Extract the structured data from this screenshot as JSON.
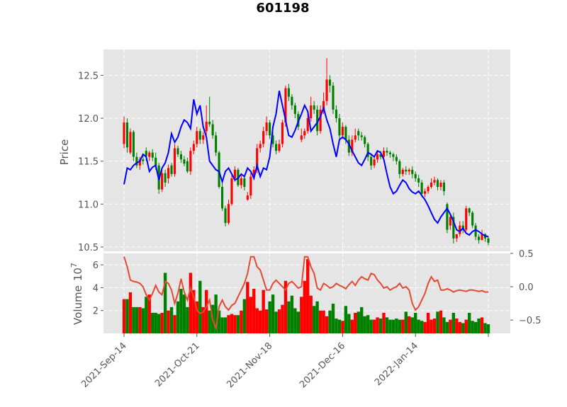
{
  "chart_data": {
    "type": "candlestick",
    "title": "601198",
    "price_panel": {
      "ylabel": "Price",
      "ylim": [
        10.45,
        12.8
      ],
      "yticks": [
        10.5,
        11.0,
        11.5,
        12.0,
        12.5
      ],
      "ytick_labels": [
        "10.5",
        "11.0",
        "11.5",
        "12.0",
        "12.5"
      ],
      "grid": true
    },
    "volume_panel": {
      "ylabel": "Volume",
      "exponent_label": "10",
      "exponent_power": "7",
      "ylim": [
        0,
        7.0
      ],
      "yticks": [
        2,
        4,
        6
      ],
      "ytick_labels": [
        "2",
        "4",
        "6"
      ],
      "secondary_ylim": [
        -0.7,
        0.5
      ],
      "secondary_yticks": [
        0.5,
        0.0,
        -0.5
      ],
      "secondary_ytick_labels": [
        "0.5",
        "0.0",
        "−0.5"
      ]
    },
    "xaxis": {
      "tick_indices": [
        0,
        23,
        46,
        69,
        92,
        115
      ],
      "tick_labels": [
        "2021-Sep-14",
        "2021-Oct-21",
        "2021-Nov-18",
        "2021-Dec-16",
        "2022-Jan-14",
        ""
      ]
    },
    "colors": {
      "up": "#ff0000",
      "down": "#008000",
      "ma_line": "#0000ff",
      "osc_line": "#e24a33",
      "panel_bg": "#e5e5e5",
      "grid": "#ffffff"
    },
    "close": [
      11.95,
      11.66,
      11.84,
      11.55,
      11.45,
      11.52,
      11.5,
      11.56,
      11.6,
      11.54,
      11.45,
      11.17,
      11.36,
      11.25,
      11.42,
      11.35,
      11.65,
      11.58,
      11.52,
      11.47,
      11.38,
      11.62,
      11.7,
      11.85,
      11.75,
      11.8,
      11.96,
      11.93,
      11.8,
      11.6,
      11.2,
      10.95,
      10.78,
      11.0,
      11.3,
      11.4,
      11.22,
      11.3,
      11.2,
      11.1,
      11.32,
      11.4,
      11.65,
      11.7,
      11.85,
      11.95,
      11.8,
      11.7,
      11.62,
      11.7,
      11.95,
      12.35,
      12.25,
      12.15,
      12.05,
      11.9,
      11.8,
      11.85,
      12.0,
      12.15,
      12.1,
      11.85,
      12.1,
      12.2,
      12.45,
      12.38,
      12.1,
      12.0,
      11.8,
      11.9,
      11.75,
      11.6,
      11.75,
      11.8,
      11.8,
      11.78,
      11.7,
      11.55,
      11.45,
      11.52,
      11.58,
      11.55,
      11.62,
      11.6,
      11.58,
      11.55,
      11.5,
      11.35,
      11.4,
      11.38,
      11.4,
      11.35,
      11.3,
      11.25,
      11.12,
      11.15,
      11.2,
      11.25,
      11.28,
      11.2,
      11.25,
      11.15,
      10.7,
      10.85,
      10.6,
      10.65,
      10.75,
      10.7,
      10.95,
      10.9,
      10.75,
      10.62,
      10.58,
      10.65,
      10.6,
      10.55
    ],
    "open": [
      11.7,
      11.95,
      11.6,
      11.84,
      11.55,
      11.45,
      11.52,
      11.62,
      11.55,
      11.6,
      11.54,
      11.45,
      11.17,
      11.36,
      11.3,
      11.45,
      11.35,
      11.65,
      11.58,
      11.52,
      11.5,
      11.38,
      11.62,
      11.7,
      11.85,
      11.75,
      11.85,
      11.96,
      11.93,
      11.8,
      11.6,
      11.2,
      10.95,
      10.78,
      11.0,
      11.3,
      11.4,
      11.22,
      11.3,
      11.05,
      11.1,
      11.32,
      11.4,
      11.65,
      11.7,
      11.85,
      11.95,
      11.8,
      11.7,
      11.62,
      11.7,
      11.95,
      12.35,
      12.25,
      12.15,
      12.05,
      11.75,
      11.8,
      11.85,
      12.0,
      12.15,
      12.1,
      11.85,
      12.1,
      12.2,
      12.45,
      12.38,
      12.1,
      12.0,
      11.8,
      11.9,
      11.75,
      11.6,
      11.75,
      11.85,
      11.8,
      11.78,
      11.7,
      11.55,
      11.45,
      11.52,
      11.58,
      11.55,
      11.62,
      11.6,
      11.58,
      11.55,
      11.5,
      11.35,
      11.4,
      11.38,
      11.4,
      11.35,
      11.3,
      11.25,
      11.12,
      11.15,
      11.2,
      11.25,
      11.28,
      11.2,
      11.25,
      11.0,
      10.75,
      10.85,
      10.6,
      10.65,
      10.75,
      10.7,
      10.95,
      10.9,
      10.75,
      10.62,
      10.58,
      10.65,
      10.6
    ],
    "high": [
      12.02,
      12.0,
      11.88,
      11.86,
      11.6,
      11.55,
      11.58,
      11.66,
      11.62,
      11.64,
      11.6,
      11.48,
      11.4,
      11.4,
      11.46,
      11.48,
      11.7,
      11.68,
      11.62,
      11.56,
      11.54,
      11.66,
      11.74,
      11.9,
      11.88,
      11.84,
      12.15,
      12.25,
      11.98,
      11.84,
      11.62,
      11.24,
      10.98,
      11.05,
      11.34,
      11.44,
      11.42,
      11.34,
      11.32,
      11.14,
      11.36,
      11.44,
      11.7,
      11.74,
      11.9,
      12.02,
      11.98,
      11.84,
      11.74,
      11.75,
      11.98,
      12.38,
      12.4,
      12.28,
      12.18,
      12.08,
      11.88,
      11.88,
      12.05,
      12.25,
      12.2,
      12.15,
      12.15,
      12.3,
      12.7,
      12.5,
      12.42,
      12.15,
      12.05,
      11.95,
      11.92,
      11.8,
      11.8,
      11.88,
      11.88,
      11.84,
      11.8,
      11.72,
      11.58,
      11.56,
      11.62,
      11.62,
      11.66,
      11.66,
      11.62,
      11.6,
      11.58,
      11.52,
      11.42,
      11.44,
      11.42,
      11.44,
      11.38,
      11.34,
      11.28,
      11.18,
      11.22,
      11.3,
      11.32,
      11.3,
      11.28,
      11.28,
      11.02,
      10.88,
      10.9,
      10.64,
      10.8,
      10.8,
      10.98,
      10.96,
      10.92,
      10.78,
      10.65,
      10.7,
      10.66,
      10.62
    ],
    "low": [
      11.65,
      11.6,
      11.58,
      11.5,
      11.42,
      11.4,
      11.46,
      11.5,
      11.5,
      11.5,
      11.4,
      11.12,
      11.14,
      11.2,
      11.24,
      11.32,
      11.32,
      11.55,
      11.48,
      11.44,
      11.36,
      11.34,
      11.58,
      11.66,
      11.7,
      11.7,
      11.8,
      11.9,
      11.76,
      11.56,
      11.18,
      10.92,
      10.74,
      10.76,
      10.98,
      11.26,
      11.2,
      11.18,
      11.16,
      11.04,
      11.06,
      11.28,
      11.36,
      11.6,
      11.66,
      11.8,
      11.76,
      11.66,
      11.58,
      11.6,
      11.66,
      11.9,
      12.2,
      12.1,
      12.0,
      11.86,
      11.72,
      11.76,
      11.82,
      11.96,
      12.05,
      11.8,
      11.82,
      12.05,
      12.15,
      12.3,
      12.05,
      11.95,
      11.76,
      11.76,
      11.7,
      11.56,
      11.56,
      11.72,
      11.74,
      11.74,
      11.66,
      11.5,
      11.4,
      11.42,
      11.48,
      11.52,
      11.52,
      11.56,
      11.54,
      11.5,
      11.46,
      11.3,
      11.32,
      11.34,
      11.34,
      11.3,
      11.26,
      11.2,
      11.08,
      11.08,
      11.12,
      11.18,
      11.22,
      11.16,
      11.16,
      11.1,
      10.66,
      10.7,
      10.54,
      10.56,
      10.62,
      10.66,
      10.68,
      10.86,
      10.72,
      10.58,
      10.54,
      10.58,
      10.56,
      10.52
    ],
    "volume": [
      3.0,
      3.0,
      3.6,
      2.3,
      2.3,
      2.3,
      2.2,
      3.2,
      3.4,
      1.8,
      1.8,
      1.7,
      1.8,
      5.3,
      2.0,
      2.3,
      1.6,
      2.8,
      3.9,
      3.4,
      2.3,
      5.3,
      3.8,
      2.8,
      4.6,
      2.3,
      3.8,
      2.0,
      2.5,
      3.4,
      2.0,
      1.4,
      1.4,
      1.6,
      1.7,
      1.6,
      1.6,
      2.0,
      3.0,
      4.5,
      3.2,
      3.9,
      2.2,
      2.0,
      3.8,
      2.1,
      2.8,
      3.4,
      1.9,
      2.1,
      2.5,
      4.6,
      2.8,
      3.3,
      2.2,
      1.9,
      3.2,
      4.6,
      6.5,
      3.3,
      2.4,
      2.8,
      2.0,
      2.0,
      1.5,
      2.0,
      2.6,
      1.3,
      1.2,
      1.1,
      2.4,
      1.7,
      1.2,
      1.8,
      1.9,
      2.3,
      1.5,
      1.6,
      1.2,
      1.2,
      1.4,
      1.3,
      1.8,
      1.4,
      1.2,
      1.2,
      1.3,
      1.2,
      1.2,
      1.9,
      1.5,
      1.4,
      1.8,
      1.2,
      1.1,
      1.0,
      1.8,
      1.2,
      1.3,
      1.9,
      2.0,
      1.4,
      1.0,
      1.2,
      1.8,
      1.3,
      1.0,
      0.9,
      1.2,
      1.8,
      1.1,
      1.0,
      1.3,
      1.4,
      0.9,
      0.8
    ],
    "ma": [
      11.23,
      11.42,
      11.4,
      11.45,
      11.48,
      11.5,
      11.58,
      11.55,
      11.38,
      11.43,
      11.45,
      11.28,
      11.42,
      11.48,
      11.6,
      11.82,
      11.72,
      11.78,
      11.9,
      11.98,
      11.95,
      11.88,
      12.22,
      12.05,
      12.15,
      11.9,
      11.78,
      11.5,
      11.45,
      11.4,
      11.38,
      11.26,
      11.38,
      11.42,
      11.35,
      11.28,
      11.3,
      11.35,
      11.32,
      11.42,
      11.38,
      11.3,
      11.45,
      11.32,
      11.42,
      11.4,
      11.55,
      11.9,
      12.05,
      12.32,
      12.15,
      11.98,
      11.8,
      11.78,
      11.86,
      11.96,
      12.05,
      12.15,
      12.08,
      11.85,
      11.9,
      11.95,
      12.02,
      12.12,
      11.98,
      11.88,
      11.7,
      11.55,
      11.75,
      11.78,
      11.75,
      11.7,
      11.62,
      11.55,
      11.48,
      11.45,
      11.52,
      11.6,
      11.58,
      11.55,
      11.62,
      11.6,
      11.52,
      11.35,
      11.2,
      11.12,
      11.15,
      11.22,
      11.28,
      11.25,
      11.18,
      11.14,
      11.12,
      11.15,
      11.1,
      11.05,
      10.98,
      10.9,
      10.82,
      10.78,
      10.85,
      10.9,
      10.95,
      10.88,
      10.8,
      10.7,
      10.68,
      10.72,
      10.66,
      10.64,
      10.68,
      10.7,
      10.68,
      10.65,
      10.63,
      10.62
    ],
    "osc": [
      0.45,
      0.3,
      0.1,
      0.08,
      0.07,
      0.05,
      0.0,
      -0.12,
      -0.2,
      -0.1,
      0.02,
      -0.08,
      -0.12,
      0.08,
      0.05,
      -0.05,
      -0.25,
      -0.1,
      0.12,
      -0.08,
      -0.2,
      -0.02,
      -0.15,
      -0.35,
      -0.4,
      -0.38,
      -0.3,
      -0.2,
      -0.5,
      -0.62,
      -0.3,
      -0.2,
      -0.3,
      -0.35,
      -0.28,
      -0.25,
      -0.15,
      -0.05,
      0.05,
      0.2,
      0.45,
      0.45,
      0.3,
      0.25,
      0.1,
      -0.05,
      -0.05,
      0.05,
      0.1,
      0.05,
      0.0,
      -0.05,
      0.05,
      0.08,
      0.03,
      -0.02,
      0.0,
      0.45,
      0.45,
      0.3,
      0.2,
      -0.02,
      -0.05,
      0.05,
      0.02,
      -0.02,
      0.0,
      0.05,
      0.02,
      0.0,
      -0.03,
      0.03,
      0.08,
      0.02,
      0.1,
      0.15,
      0.12,
      0.1,
      0.2,
      0.18,
      0.1,
      0.05,
      -0.02,
      0.0,
      -0.05,
      -0.02,
      0.0,
      0.05,
      -0.02,
      0.0,
      -0.05,
      -0.25,
      -0.35,
      -0.3,
      -0.2,
      -0.1,
      0.05,
      0.15,
      0.08,
      0.1,
      -0.05,
      -0.05,
      -0.03,
      -0.05,
      -0.08,
      -0.06,
      -0.05,
      -0.06,
      -0.07,
      -0.05,
      -0.05,
      -0.06,
      -0.07,
      -0.06,
      -0.08,
      -0.08
    ]
  }
}
